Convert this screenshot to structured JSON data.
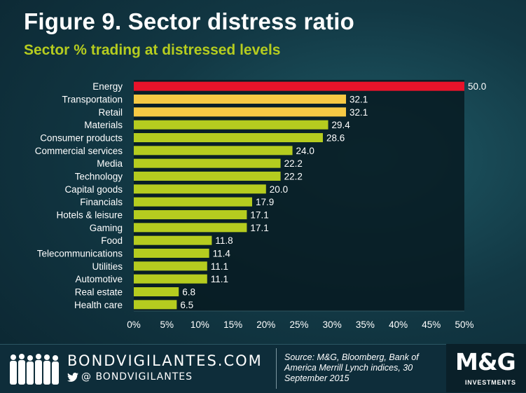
{
  "header": {
    "title": "Figure 9. Sector distress ratio",
    "subtitle": "Sector % trading at distressed levels"
  },
  "colors": {
    "highlight_red": "#e8132a",
    "highlight_yellow": "#f6c944",
    "bar_green": "#b5cc1f",
    "subtitle": "#b5cc1f",
    "text": "#ffffff"
  },
  "chart_data": {
    "type": "bar",
    "orientation": "horizontal",
    "title": "Figure 9. Sector distress ratio",
    "subtitle": "Sector % trading at distressed levels",
    "xlabel": "",
    "ylabel": "",
    "xlim": [
      0,
      50
    ],
    "x_ticks": [
      "0%",
      "5%",
      "10%",
      "15%",
      "20%",
      "25%",
      "30%",
      "35%",
      "40%",
      "45%",
      "50%"
    ],
    "categories": [
      "Energy",
      "Transportation",
      "Retail",
      "Materials",
      "Consumer products",
      "Commercial services",
      "Media",
      "Technology",
      "Capital goods",
      "Financials",
      "Hotels & leisure",
      "Gaming",
      "Food",
      "Telecommunications",
      "Utilities",
      "Automotive",
      "Real estate",
      "Health care"
    ],
    "values": [
      50.0,
      32.1,
      32.1,
      29.4,
      28.6,
      24.0,
      22.2,
      22.2,
      20.0,
      17.9,
      17.1,
      17.1,
      11.8,
      11.4,
      11.1,
      11.1,
      6.8,
      6.5
    ],
    "value_labels": [
      "50.0",
      "32.1",
      "32.1",
      "29.4",
      "28.6",
      "24.0",
      "22.2",
      "22.2",
      "20.0",
      "17.9",
      "17.1",
      "17.1",
      "11.8",
      "11.4",
      "11.1",
      "11.1",
      "6.8",
      "6.5"
    ],
    "bar_colors": [
      "red",
      "yellow",
      "yellow",
      "green",
      "green",
      "green",
      "green",
      "green",
      "green",
      "green",
      "green",
      "green",
      "green",
      "green",
      "green",
      "green",
      "green",
      "green"
    ],
    "grid": false,
    "legend": "none"
  },
  "footer": {
    "brand": "BONDVIGILANTES.COM",
    "twitter_handle": "@ BONDVIGILANTES",
    "source": "Source: M&G, Bloomberg, Bank of America Merrill Lynch indices, 30 September 2015",
    "logo_main": "M&G",
    "logo_sub": "INVESTMENTS",
    "icons": [
      "people-silhouettes-icon",
      "twitter-bird-icon"
    ]
  }
}
